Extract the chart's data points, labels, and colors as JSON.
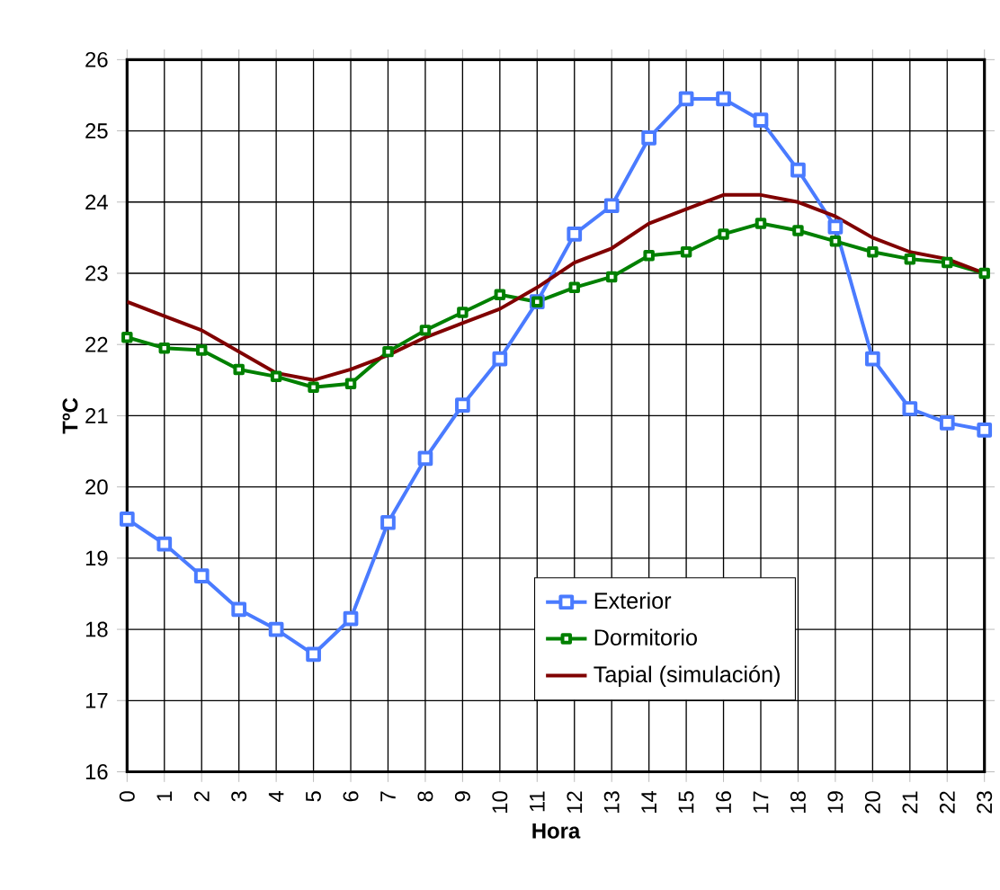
{
  "chart_data": {
    "type": "line",
    "xlabel": "Hora",
    "ylabel": "TºC",
    "x": [
      0,
      1,
      2,
      3,
      4,
      5,
      6,
      7,
      8,
      9,
      10,
      11,
      12,
      13,
      14,
      15,
      16,
      17,
      18,
      19,
      20,
      21,
      22,
      23
    ],
    "xlim": [
      0,
      23
    ],
    "xticks": [
      0,
      1,
      2,
      3,
      4,
      5,
      6,
      7,
      8,
      9,
      10,
      11,
      12,
      13,
      14,
      15,
      16,
      17,
      18,
      19,
      20,
      21,
      22,
      23
    ],
    "ylim": [
      16,
      26
    ],
    "yticks": [
      16,
      17,
      18,
      19,
      20,
      21,
      22,
      23,
      24,
      25,
      26
    ],
    "grid": true,
    "legend": "bottom right",
    "series": [
      {
        "name": "Exterior",
        "color": "#4a7bff",
        "marker": "square",
        "values": [
          19.55,
          19.2,
          18.75,
          18.28,
          18.0,
          17.65,
          18.15,
          19.5,
          20.4,
          21.15,
          21.8,
          22.6,
          23.55,
          23.95,
          24.9,
          25.45,
          25.45,
          25.15,
          24.45,
          23.65,
          21.8,
          21.1,
          20.9,
          20.8
        ]
      },
      {
        "name": "Dormitorio",
        "color": "#008000",
        "marker": "square",
        "values": [
          22.1,
          21.95,
          21.92,
          21.65,
          21.55,
          21.4,
          21.45,
          21.9,
          22.2,
          22.45,
          22.7,
          22.6,
          22.8,
          22.95,
          23.25,
          23.3,
          23.55,
          23.7,
          23.6,
          23.45,
          23.3,
          23.2,
          23.15,
          23.0
        ]
      },
      {
        "name": "Tapial (simulación)",
        "color": "#800000",
        "marker": "none",
        "values": [
          22.6,
          22.4,
          22.2,
          21.9,
          21.6,
          21.5,
          21.65,
          21.85,
          22.1,
          22.3,
          22.5,
          22.8,
          23.15,
          23.35,
          23.7,
          23.9,
          24.1,
          24.1,
          24.0,
          23.8,
          23.5,
          23.3,
          23.2,
          23.0
        ]
      }
    ]
  }
}
